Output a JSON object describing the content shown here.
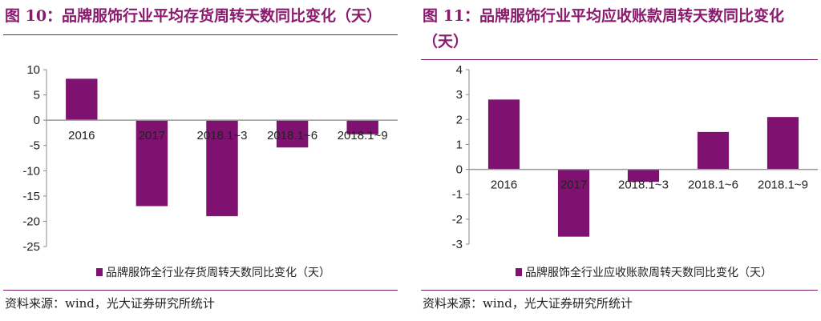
{
  "charts": [
    {
      "figure_title": "图 10：品牌服饰行业平均存货周转天数同比变化（天）",
      "source": "资料来源：wind，光大证券研究所统计",
      "chart_data": {
        "type": "bar",
        "categories": [
          "2016",
          "2017",
          "2018.1~3",
          "2018.1~6",
          "2018.1~9"
        ],
        "series": [
          {
            "name": "品牌服饰全行业存货周转天数同比变化（天）",
            "values": [
              8.2,
              -17.0,
              -19.0,
              -5.4,
              -2.8
            ]
          }
        ],
        "yticks": [
          10,
          5,
          0,
          -5,
          -10,
          -15,
          -20,
          -25
        ],
        "ylim": [
          -25,
          10
        ],
        "bar_color": "#7f1170",
        "legend_position": "bottom"
      }
    },
    {
      "figure_title": "图 11：品牌服饰行业平均应收账款周转天数同比变化（天）",
      "source": "资料来源：wind，光大证券研究所统计",
      "chart_data": {
        "type": "bar",
        "categories": [
          "2016",
          "2017",
          "2018.1~3",
          "2018.1~6",
          "2018.1~9"
        ],
        "series": [
          {
            "name": "品牌服饰全行业应收账款周转天数同比变化（天）",
            "values": [
              2.8,
              -2.7,
              -0.5,
              1.5,
              2.1
            ]
          }
        ],
        "yticks": [
          4,
          3,
          2,
          1,
          0,
          -1,
          -2,
          -3
        ],
        "ylim": [
          -3,
          4
        ],
        "bar_color": "#7f1170",
        "legend_position": "bottom"
      }
    }
  ]
}
